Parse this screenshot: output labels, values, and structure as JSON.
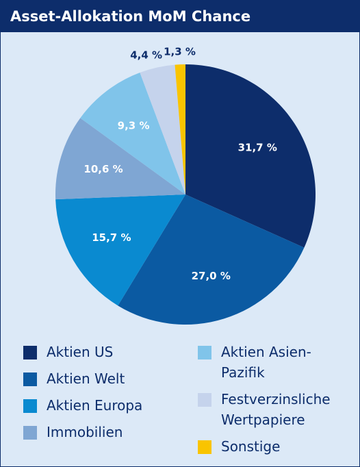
{
  "chart_data": {
    "type": "pie",
    "title": "Asset-Allokation MoM Chance",
    "categories": [
      "Aktien US",
      "Aktien Welt",
      "Aktien Europa",
      "Immobilien",
      "Aktien Asien-Pazifik",
      "Festverzinsliche Wertpapiere",
      "Sonstige"
    ],
    "values": [
      31.7,
      27.0,
      15.7,
      10.6,
      9.3,
      4.4,
      1.3
    ],
    "value_labels": [
      "31,7 %",
      "27,0 %",
      "15,7 %",
      "10,6 %",
      "9,3 %",
      "4,4 %",
      "1,3 %"
    ],
    "colors": [
      "#0d2d6b",
      "#0b5aa2",
      "#0a8ad0",
      "#7fa6d3",
      "#80c4ea",
      "#c5d3ec",
      "#f9c400"
    ]
  }
}
